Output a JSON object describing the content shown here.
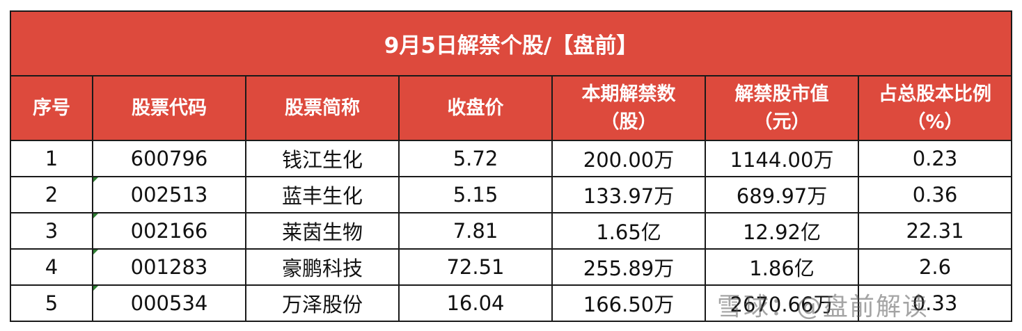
{
  "title": "9月5日解禁个股/【盘前】",
  "headers": [
    [
      "序号"
    ],
    [
      "股票代码"
    ],
    [
      "股票简称"
    ],
    [
      "收盘价"
    ],
    [
      "本期解禁数",
      "（股）"
    ],
    [
      "解禁股市值",
      "（元）"
    ],
    [
      "占总股本比例",
      "（%）"
    ]
  ],
  "rows": [
    [
      "1",
      "600796",
      "钱江生化",
      "5.72",
      "200.00万",
      "1144.00万",
      "0.23"
    ],
    [
      "2",
      "002513",
      "蓝丰生化",
      "5.15",
      "133.97万",
      "689.97万",
      "0.36"
    ],
    [
      "3",
      "002166",
      "莱茵生物",
      "7.81",
      "1.65亿",
      "12.92亿",
      "22.31"
    ],
    [
      "4",
      "001283",
      "豪鹏科技",
      "72.51",
      "255.89万",
      "1.86亿",
      "2.6"
    ],
    [
      "5",
      "000534",
      "万泽股份",
      "16.04",
      "166.50万",
      "2670.66万",
      "0.33"
    ]
  ],
  "watermark": "雪球：@盘前解读",
  "colors": {
    "header_bg": "#dd4a3d",
    "header_text": "#ffffff",
    "border": "#1a1a1a",
    "cell_marker": "#2e7d32"
  }
}
